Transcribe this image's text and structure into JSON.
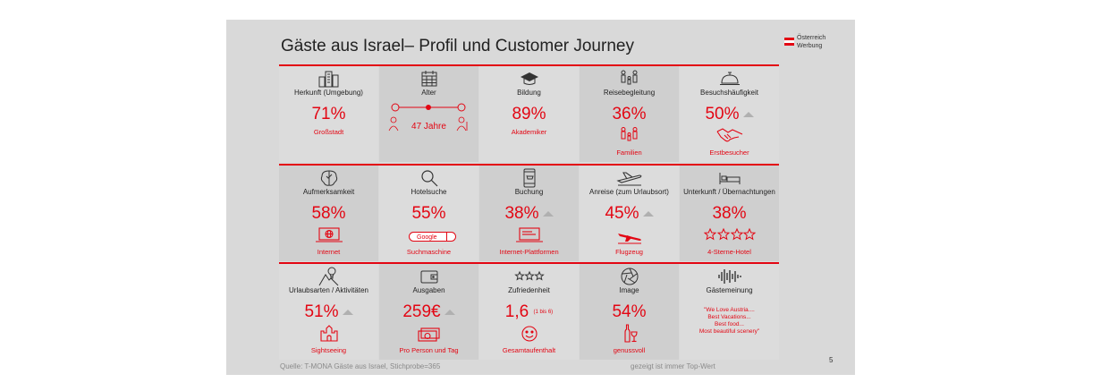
{
  "title": "Gäste aus Israel– Profil und Customer Journey",
  "logo": {
    "line1": "Österreich",
    "line2": "Werbung",
    "flag_colors": [
      "#e30613",
      "#ffffff",
      "#e30613"
    ]
  },
  "accent_color": "#e30613",
  "rows": [
    [
      {
        "label": "Herkunft (Umgebung)",
        "value": "71%",
        "sub": "Großstadt",
        "icon": "city-icon"
      },
      {
        "label": "Alter",
        "value": "47 Jahre",
        "icon": "calendar-icon"
      },
      {
        "label": "Bildung",
        "value": "89%",
        "sub": "Akademiker",
        "icon": "graduation-cap-icon"
      },
      {
        "label": "Reisebegleitung",
        "value": "36%",
        "sub": "Familien",
        "icon": "family-icon"
      },
      {
        "label": "Besuchshäufigkeit",
        "value": "50%",
        "sub": "Erstbesucher",
        "icon": "service-bell-icon"
      }
    ],
    [
      {
        "label": "Aufmerksamkeit",
        "value": "58%",
        "sub": "Internet",
        "icon": "brain-icon"
      },
      {
        "label": "Hotelsuche",
        "value": "55%",
        "sub": "Suchmaschine",
        "search_box": "Google",
        "icon": "magnifier-icon"
      },
      {
        "label": "Buchung",
        "value": "38%",
        "sub": "Internet-Plattformen",
        "icon": "smartphone-cart-icon"
      },
      {
        "label": "Anreise (zum Urlaubsort)",
        "value": "45%",
        "sub": "Flugzeug",
        "icon": "plane-icon"
      },
      {
        "label": "Unterkunft / Übernachtungen",
        "value": "38%",
        "sub": "4-Sterne-Hotel",
        "icon": "bed-icon"
      }
    ],
    [
      {
        "label": "Urlaubsarten / Aktivitäten",
        "value": "51%",
        "sub": "Sightseeing",
        "icon": "balloon-mountain-icon"
      },
      {
        "label": "Ausgaben",
        "value": "259€",
        "sub": "Pro Person und Tag",
        "icon": "wallet-icon"
      },
      {
        "label": "Zufriedenheit",
        "value": "1,6",
        "scale": "(1 bis 6)",
        "sub": "Gesamtaufenthalt",
        "icon": "stars-icon"
      },
      {
        "label": "Image",
        "value": "54%",
        "sub": "genussvoll",
        "icon": "aperture-icon"
      },
      {
        "label": "Gästemeinung",
        "quote": [
          "\"We Love Austria....",
          "Best Vacations...",
          "Best food...",
          "Most beautiful scenery\""
        ],
        "icon": "soundwave-icon"
      }
    ]
  ],
  "footer": {
    "source": "Quelle: T-MONA Gäste aus Israel, Stichprobe=365",
    "note": "gezeigt ist immer Top-Wert",
    "page": "5"
  }
}
